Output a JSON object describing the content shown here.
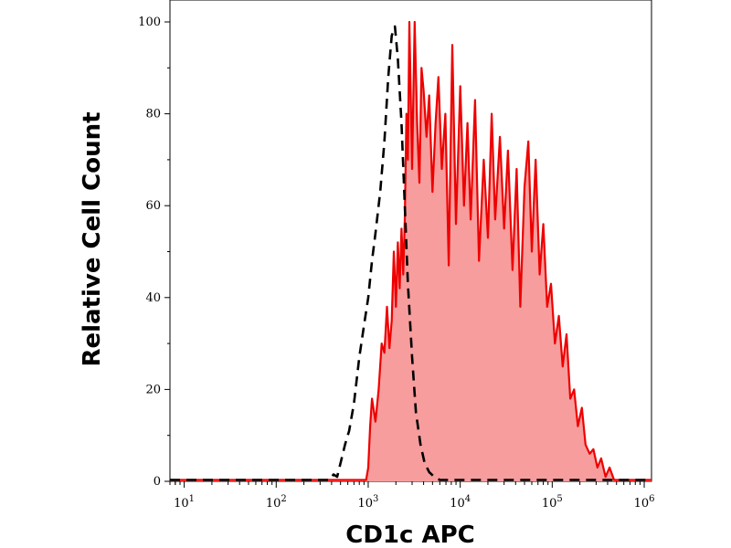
{
  "chart_data": {
    "type": "area",
    "title": "",
    "xlabel": "CD1c APC",
    "ylabel": "Relative Cell Count",
    "xscale": "log",
    "xlim": [
      7,
      1200000
    ],
    "ylim": [
      0,
      100
    ],
    "x_ticks": [
      {
        "value": 10,
        "base": "10",
        "exp": "1"
      },
      {
        "value": 100,
        "base": "10",
        "exp": "2"
      },
      {
        "value": 1000,
        "base": "10",
        "exp": "3"
      },
      {
        "value": 10000,
        "base": "10",
        "exp": "4"
      },
      {
        "value": 100000,
        "base": "10",
        "exp": "5"
      },
      {
        "value": 1000000,
        "base": "10",
        "exp": "6"
      }
    ],
    "y_ticks": [
      {
        "value": 0,
        "label": "0"
      },
      {
        "value": 20,
        "label": "20"
      },
      {
        "value": 40,
        "label": "40"
      },
      {
        "value": 60,
        "label": "60"
      },
      {
        "value": 80,
        "label": "80"
      },
      {
        "value": 100,
        "label": "100"
      }
    ],
    "grid": false,
    "legend": "none",
    "series": [
      {
        "style": "filled-solid",
        "color": "#ee0000",
        "fill": "#f79d9d",
        "points": [
          [
            7,
            0.3
          ],
          [
            500,
            0.3
          ],
          [
            950,
            0.3
          ],
          [
            1000,
            3
          ],
          [
            1050,
            12
          ],
          [
            1100,
            18
          ],
          [
            1200,
            13
          ],
          [
            1300,
            20
          ],
          [
            1400,
            30
          ],
          [
            1500,
            28
          ],
          [
            1600,
            38
          ],
          [
            1700,
            29
          ],
          [
            1800,
            35
          ],
          [
            1900,
            50
          ],
          [
            2000,
            38
          ],
          [
            2100,
            52
          ],
          [
            2200,
            42
          ],
          [
            2300,
            55
          ],
          [
            2400,
            45
          ],
          [
            2500,
            57
          ],
          [
            2600,
            80
          ],
          [
            2700,
            70
          ],
          [
            2800,
            100
          ],
          [
            3000,
            68
          ],
          [
            3200,
            100
          ],
          [
            3400,
            78
          ],
          [
            3600,
            65
          ],
          [
            3800,
            90
          ],
          [
            4000,
            85
          ],
          [
            4300,
            75
          ],
          [
            4600,
            84
          ],
          [
            5000,
            63
          ],
          [
            5400,
            78
          ],
          [
            5800,
            88
          ],
          [
            6300,
            68
          ],
          [
            6900,
            80
          ],
          [
            7500,
            47
          ],
          [
            8200,
            95
          ],
          [
            9000,
            56
          ],
          [
            10000,
            86
          ],
          [
            11000,
            60
          ],
          [
            12000,
            78
          ],
          [
            13000,
            57
          ],
          [
            14500,
            83
          ],
          [
            16000,
            48
          ],
          [
            18000,
            70
          ],
          [
            20000,
            53
          ],
          [
            22000,
            80
          ],
          [
            24000,
            57
          ],
          [
            27000,
            75
          ],
          [
            30000,
            55
          ],
          [
            33000,
            72
          ],
          [
            37000,
            46
          ],
          [
            41000,
            68
          ],
          [
            45000,
            38
          ],
          [
            50000,
            64
          ],
          [
            55000,
            74
          ],
          [
            60000,
            50
          ],
          [
            66000,
            70
          ],
          [
            73000,
            45
          ],
          [
            80000,
            56
          ],
          [
            88000,
            38
          ],
          [
            97000,
            43
          ],
          [
            107000,
            30
          ],
          [
            118000,
            36
          ],
          [
            130000,
            25
          ],
          [
            143000,
            32
          ],
          [
            157000,
            18
          ],
          [
            173000,
            20
          ],
          [
            190000,
            12
          ],
          [
            210000,
            16
          ],
          [
            230000,
            8
          ],
          [
            255000,
            6
          ],
          [
            280000,
            7
          ],
          [
            310000,
            3
          ],
          [
            340000,
            5
          ],
          [
            380000,
            1
          ],
          [
            420000,
            3
          ],
          [
            470000,
            0.3
          ],
          [
            1200000,
            0.3
          ]
        ]
      },
      {
        "style": "dashed",
        "color": "#000000",
        "points": [
          [
            7,
            0.3
          ],
          [
            380,
            0.3
          ],
          [
            420,
            1.5
          ],
          [
            460,
            1
          ],
          [
            500,
            4
          ],
          [
            560,
            8
          ],
          [
            620,
            11
          ],
          [
            700,
            17
          ],
          [
            800,
            27
          ],
          [
            900,
            34
          ],
          [
            1000,
            40
          ],
          [
            1100,
            48
          ],
          [
            1200,
            54
          ],
          [
            1350,
            63
          ],
          [
            1500,
            74
          ],
          [
            1650,
            88
          ],
          [
            1800,
            97
          ],
          [
            1950,
            99
          ],
          [
            2100,
            92
          ],
          [
            2300,
            78
          ],
          [
            2500,
            60
          ],
          [
            2700,
            43
          ],
          [
            3000,
            27
          ],
          [
            3300,
            15
          ],
          [
            3700,
            8
          ],
          [
            4100,
            4
          ],
          [
            4600,
            2
          ],
          [
            5200,
            1
          ],
          [
            6000,
            0.3
          ],
          [
            1200000,
            0.3
          ]
        ]
      }
    ]
  }
}
